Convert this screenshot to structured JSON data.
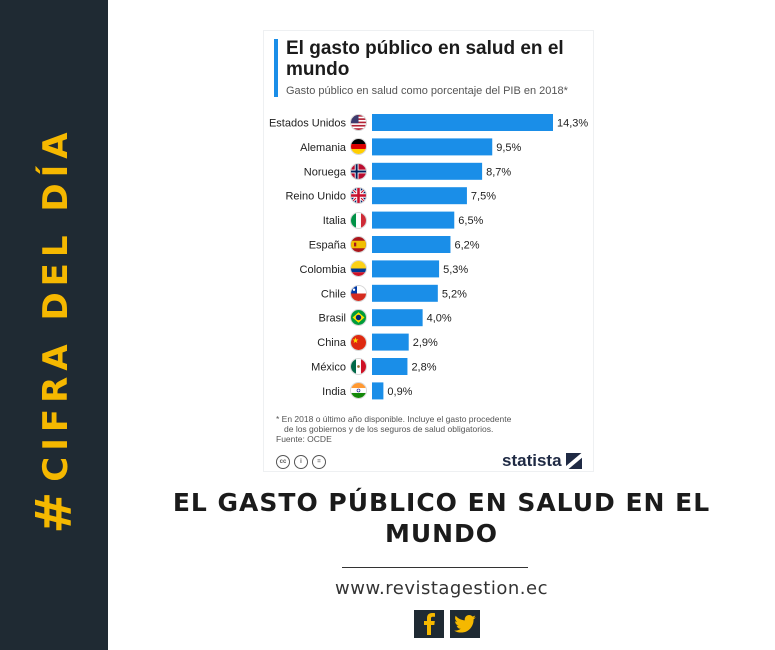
{
  "sidebar": {
    "hash": "#",
    "text": "CIFRA DEL DÍA"
  },
  "chart_data": {
    "type": "bar",
    "orientation": "horizontal",
    "title": "El gasto público en salud en el mundo",
    "subtitle": "Gasto público en salud como porcentaje del PIB en 2018*",
    "categories": [
      "Estados Unidos",
      "Alemania",
      "Noruega",
      "Reino Unido",
      "Italia",
      "España",
      "Colombia",
      "Chile",
      "Brasil",
      "China",
      "México",
      "India"
    ],
    "flags": [
      "usa-flag-icon",
      "germany-flag-icon",
      "norway-flag-icon",
      "uk-flag-icon",
      "italy-flag-icon",
      "spain-flag-icon",
      "colombia-flag-icon",
      "chile-flag-icon",
      "brazil-flag-icon",
      "china-flag-icon",
      "mexico-flag-icon",
      "india-flag-icon"
    ],
    "values": [
      14.3,
      9.5,
      8.7,
      7.5,
      6.5,
      6.2,
      5.3,
      5.2,
      4.0,
      2.9,
      2.8,
      0.9
    ],
    "value_labels": [
      "14,3%",
      "9,5%",
      "8,7%",
      "7,5%",
      "6,5%",
      "6,2%",
      "5,3%",
      "5,2%",
      "4,0%",
      "2,9%",
      "2,8%",
      "0,9%"
    ],
    "bar_color": "#1a8ee8",
    "grid": false,
    "legend": "none",
    "xlim": [
      0,
      14.3
    ]
  },
  "footnote": {
    "line1": "* En 2018 o último año disponible. Incluye el gasto procedente",
    "line2": "de los gobiernos y de los seguros de salud obligatorios.",
    "source": "Fuente: OCDE"
  },
  "license_icons": [
    "cc",
    "i",
    "="
  ],
  "brand": "statista",
  "headline": {
    "line1": "EL GASTO PÚBLICO EN SALUD EN EL",
    "line2": "MUNDO"
  },
  "site_url": "www.revistagestion.ec",
  "social": [
    "facebook-icon",
    "twitter-icon"
  ],
  "colors": {
    "sidebar": "#1f2a33",
    "accent_yellow": "#f5b800",
    "bar": "#1a8ee8"
  }
}
